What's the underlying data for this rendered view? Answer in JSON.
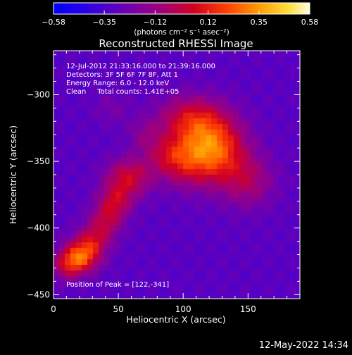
{
  "chart_data": {
    "type": "heatmap",
    "title": "Reconstructed RHESSI Image",
    "xlabel": "Heliocentric X (arcsec)",
    "ylabel": "Heliocentric Y (arcsec)",
    "xlim": [
      0,
      190
    ],
    "ylim": [
      -453,
      -267
    ],
    "xticks": [
      0,
      50,
      100,
      150
    ],
    "yticks": [
      -300,
      -350,
      -400,
      -450
    ],
    "colorbar": {
      "min": -0.58,
      "max": 0.58,
      "ticks": [
        "-0.58",
        "-0.35",
        "-0.12",
        "0.12",
        "0.35",
        "0.58"
      ],
      "unit_label": "(photons cm⁻² s⁻¹ asec⁻²)"
    },
    "annotations": [
      "12-Jul-2012 21:33:16.000 to 21:39:16.000",
      "Detectors: 3F 5F 6F 7F 8F, Att 1",
      "Energy Range: 6.0 - 12.0 keV",
      "Clean     Total counts: 1.41E+05"
    ],
    "peak_label": "Position of Peak = [122,-341]",
    "sources": [
      {
        "x": 122,
        "y": -341,
        "sx": 17,
        "sy": 17,
        "amp": 0.58
      },
      {
        "x": 105,
        "y": -318,
        "sx": 18,
        "sy": 12,
        "amp": 0.3
      },
      {
        "x": 150,
        "y": -365,
        "sx": 14,
        "sy": 14,
        "amp": 0.22
      },
      {
        "x": 98,
        "y": -350,
        "sx": 13,
        "sy": 13,
        "amp": 0.22
      },
      {
        "x": 85,
        "y": -345,
        "sx": 12,
        "sy": 10,
        "amp": 0.16
      },
      {
        "x": 58,
        "y": -362,
        "sx": 12,
        "sy": 10,
        "amp": 0.33
      },
      {
        "x": 48,
        "y": -380,
        "sx": 9,
        "sy": 9,
        "amp": 0.28
      },
      {
        "x": 40,
        "y": -395,
        "sx": 9,
        "sy": 9,
        "amp": 0.25
      },
      {
        "x": 30,
        "y": -410,
        "sx": 9,
        "sy": 8,
        "amp": 0.28
      },
      {
        "x": 20,
        "y": -422,
        "sx": 10,
        "sy": 8,
        "amp": 0.52
      },
      {
        "x": 10,
        "y": -430,
        "sx": 8,
        "sy": 7,
        "amp": 0.2
      },
      {
        "x": 70,
        "y": -330,
        "sx": 8,
        "sy": 8,
        "amp": 0.12
      },
      {
        "x": 45,
        "y": -310,
        "sx": 10,
        "sy": 9,
        "amp": 0.08
      }
    ],
    "background": -0.3
  },
  "footer": {
    "timestamp": "12-May-2022 14:34"
  }
}
